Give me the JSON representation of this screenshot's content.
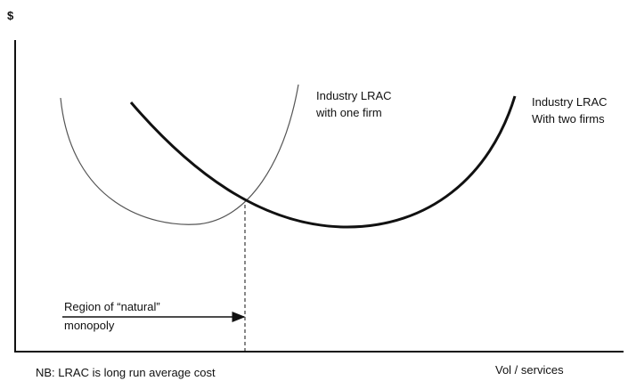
{
  "axis": {
    "y_label": "$",
    "x_label": "Vol / services"
  },
  "curves": [
    {
      "label_lines": [
        "Industry LRAC",
        "with one firm"
      ]
    },
    {
      "label_lines": [
        "Industry LRAC",
        "With two firms"
      ]
    }
  ],
  "annotation": {
    "lines": [
      "Region of “natural”",
      "monopoly"
    ]
  },
  "note": "NB: LRAC is long run average cost"
}
